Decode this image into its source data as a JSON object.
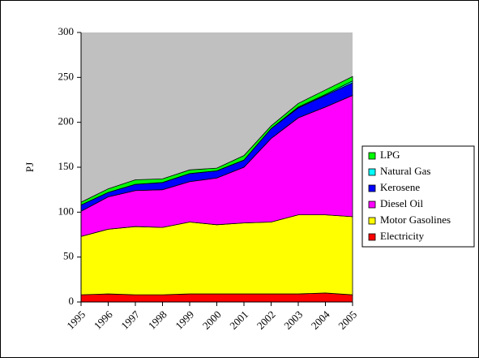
{
  "chart_data": {
    "type": "stacked-area",
    "y_label": "PJ",
    "categories": [
      "1995",
      "1996",
      "1997",
      "1998",
      "1999",
      "2000",
      "2001",
      "2002",
      "2003",
      "2004",
      "2005"
    ],
    "series": [
      {
        "name": "Electricity",
        "color": "#ff0000",
        "values": [
          8,
          9,
          8,
          8,
          9,
          9,
          9,
          9,
          9,
          10,
          8
        ]
      },
      {
        "name": "Motor Gasolines",
        "color": "#ffff00",
        "values": [
          65,
          72,
          76,
          75,
          80,
          77,
          79,
          80,
          88,
          87,
          87
        ]
      },
      {
        "name": "Diesel Oil",
        "color": "#ff00ff",
        "values": [
          28,
          36,
          40,
          42,
          45,
          52,
          62,
          93,
          108,
          120,
          135
        ]
      },
      {
        "name": "Kerosene",
        "color": "#0000ff",
        "values": [
          7,
          5,
          7,
          8,
          9,
          8,
          8,
          11,
          11,
          13,
          14
        ]
      },
      {
        "name": "Natural Gas",
        "color": "#00ffff",
        "values": [
          0,
          0,
          0,
          0,
          0,
          0,
          0,
          0,
          1,
          1,
          2
        ]
      },
      {
        "name": "LPG",
        "color": "#00ff00",
        "values": [
          3,
          4,
          5,
          4,
          4,
          3,
          5,
          3,
          4,
          5,
          5
        ]
      }
    ],
    "ylim": [
      0,
      300
    ],
    "yticks": [
      0,
      50,
      100,
      150,
      200,
      250,
      300
    ],
    "plot_background": "#c0c0c0"
  }
}
